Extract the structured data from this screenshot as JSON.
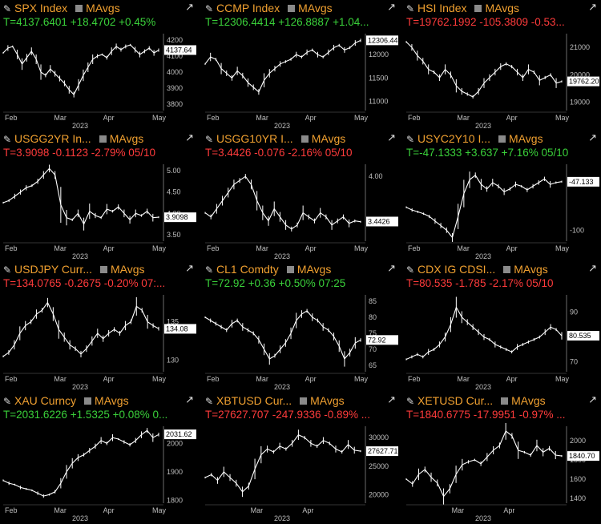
{
  "panels": [
    {
      "ticker": "SPX Index",
      "mavgs": "MAvgs",
      "quote": "T=4137.6401 +18.4702 +0.45%",
      "dir": "up",
      "last_label": "4137.64",
      "chart_data": {
        "type": "line",
        "yticks": [
          "4200",
          "4100",
          "4000",
          "3900",
          "3800"
        ],
        "yvals": [
          4200,
          4100,
          4000,
          3900,
          3800
        ],
        "ylim": [
          3760,
          4240
        ],
        "xticks": [
          "Feb",
          "Mar",
          "Apr",
          "May"
        ],
        "xyear": "2023",
        "last": 4137.64,
        "series": [
          4120,
          4150,
          4160,
          4110,
          4050,
          4090,
          4130,
          4080,
          4000,
          3980,
          4020,
          3990,
          3960,
          3930,
          3890,
          3860,
          3920,
          3980,
          4030,
          4080,
          4100,
          4110,
          4090,
          4130,
          4160,
          4140,
          4160,
          4170,
          4140,
          4110,
          4130,
          4150,
          4120,
          4137
        ]
      }
    },
    {
      "ticker": "CCMP Index",
      "mavgs": "MAvgs",
      "quote": "T=12306.4414 +126.8887 +1.04...",
      "dir": "up",
      "last_label": "12306.44",
      "chart_data": {
        "type": "line",
        "yticks": [
          "12000",
          "11500",
          "11000"
        ],
        "yvals": [
          12000,
          11500,
          11000
        ],
        "ylim": [
          10800,
          12450
        ],
        "xticks": [
          "Feb",
          "Mar",
          "Apr",
          "May"
        ],
        "xyear": "2023",
        "last": 12306.44,
        "series": [
          11800,
          11950,
          11900,
          11700,
          11600,
          11500,
          11650,
          11550,
          11400,
          11300,
          11200,
          11450,
          11600,
          11700,
          11800,
          11850,
          11900,
          12000,
          11950,
          12050,
          12100,
          12000,
          11950,
          12050,
          12150,
          12200,
          12100,
          12150,
          12250,
          12306
        ]
      }
    },
    {
      "ticker": "HSI Index",
      "mavgs": "MAvgs",
      "quote": "T=19762.1992 -105.3809 -0.53...",
      "dir": "dn",
      "last_label": "19762.20",
      "chart_data": {
        "type": "line",
        "yticks": [
          "21000",
          "20000",
          "19000"
        ],
        "yvals": [
          21000,
          20000,
          19000
        ],
        "ylim": [
          18700,
          21500
        ],
        "xticks": [
          "Feb",
          "Mar",
          "Apr",
          "May"
        ],
        "xyear": "2023",
        "last": 19762.2,
        "series": [
          21200,
          21000,
          20700,
          20500,
          20200,
          20100,
          19900,
          20200,
          20000,
          19600,
          19400,
          19300,
          19200,
          19400,
          19700,
          19900,
          20100,
          20300,
          20400,
          20300,
          20100,
          19900,
          20200,
          20100,
          19800,
          19900,
          20000,
          19700,
          19762
        ]
      }
    },
    {
      "ticker": "USGG2YR In...",
      "mavgs": "MAvgs",
      "quote": "T=3.9098 -0.1123 -2.79% 05/10",
      "dir": "dn",
      "last_label": "3.9098",
      "chart_data": {
        "type": "line",
        "yticks": [
          "5.00",
          "4.50",
          "4.00",
          "3.50"
        ],
        "yvals": [
          5.0,
          4.5,
          4.0,
          3.5
        ],
        "ylim": [
          3.35,
          5.15
        ],
        "xticks": [
          "Feb",
          "Mar",
          "Apr",
          "May"
        ],
        "xyear": "2023",
        "last": 3.9098,
        "series": [
          4.25,
          4.3,
          4.4,
          4.5,
          4.6,
          4.65,
          4.75,
          4.9,
          5.05,
          4.9,
          4.2,
          3.9,
          3.85,
          4.0,
          3.75,
          4.05,
          3.95,
          3.9,
          4.1,
          4.05,
          4.15,
          4.0,
          3.85,
          4.0,
          3.95,
          4.05,
          3.9,
          3.91
        ]
      }
    },
    {
      "ticker": "USGG10YR I...",
      "mavgs": "MAvgs",
      "quote": "T=3.4426 -0.076 -2.16% 05/10",
      "dir": "dn",
      "last_label": "3.4426",
      "chart_data": {
        "type": "line",
        "yticks": [
          "4.00"
        ],
        "yvals": [
          4.0
        ],
        "ylim": [
          3.2,
          4.15
        ],
        "xticks": [
          "Feb",
          "Mar",
          "Apr",
          "May"
        ],
        "xyear": "2023",
        "last": 3.4426,
        "series": [
          3.55,
          3.5,
          3.6,
          3.7,
          3.8,
          3.9,
          3.95,
          4.0,
          3.9,
          3.7,
          3.55,
          3.45,
          3.6,
          3.5,
          3.4,
          3.35,
          3.4,
          3.55,
          3.5,
          3.45,
          3.55,
          3.5,
          3.4,
          3.45,
          3.5,
          3.42,
          3.45,
          3.44
        ]
      }
    },
    {
      "ticker": "USYC2Y10 I...",
      "mavgs": "MAvgs",
      "quote": "T=-47.1333 +3.637 +7.16% 05/10",
      "dir": "up",
      "last_label": "-47.133",
      "chart_data": {
        "type": "line",
        "yticks": [
          "-100"
        ],
        "yvals": [
          -100
        ],
        "ylim": [
          -112,
          -28
        ],
        "xticks": [
          "Feb",
          "Mar",
          "Apr",
          "May"
        ],
        "xyear": "2023",
        "last": -47.133,
        "series": [
          -75,
          -78,
          -80,
          -82,
          -85,
          -90,
          -95,
          -100,
          -108,
          -85,
          -60,
          -45,
          -40,
          -50,
          -55,
          -48,
          -52,
          -58,
          -55,
          -50,
          -52,
          -56,
          -52,
          -48,
          -44,
          -50,
          -48,
          -47
        ]
      }
    },
    {
      "ticker": "USDJPY Curr...",
      "mavgs": "MAvgs",
      "quote": "T=134.0765 -0.2675 -0.20% 07:...",
      "dir": "dn",
      "last_label": "134.08",
      "chart_data": {
        "type": "line",
        "yticks": [
          "135",
          "130"
        ],
        "yvals": [
          135,
          130
        ],
        "ylim": [
          128.5,
          138.5
        ],
        "xticks": [
          "Feb",
          "Mar",
          "Apr",
          "May"
        ],
        "xyear": "2023",
        "last": 134.08,
        "series": [
          130.5,
          131,
          132,
          133.5,
          134.5,
          135,
          136,
          136.5,
          137.5,
          136,
          134,
          133,
          132,
          131.5,
          130.8,
          131.5,
          132.5,
          133.5,
          132.8,
          133.5,
          134,
          133.5,
          134.5,
          135,
          137,
          136.5,
          135,
          134.5,
          134.1
        ]
      }
    },
    {
      "ticker": "CL1 Comdty",
      "mavgs": "MAvgs",
      "quote": "T=72.92 +0.36 +0.50% 07:25",
      "dir": "up",
      "last_label": "72.92",
      "chart_data": {
        "type": "line",
        "yticks": [
          "85",
          "80",
          "75",
          "70",
          "65"
        ],
        "yvals": [
          85,
          80,
          75,
          70,
          65
        ],
        "ylim": [
          63,
          87
        ],
        "xticks": [
          "Feb",
          "Mar",
          "Apr",
          "May"
        ],
        "xyear": "2023",
        "last": 72.92,
        "series": [
          80,
          79,
          78,
          77,
          76,
          78,
          79,
          77,
          76,
          75,
          73,
          70,
          67,
          68,
          70,
          72,
          75,
          79,
          81,
          82,
          80,
          79,
          77,
          76,
          74,
          71,
          67,
          69,
          72,
          72.9
        ]
      }
    },
    {
      "ticker": "CDX IG CDSI...",
      "mavgs": "MAvgs",
      "quote": "T=80.535 -1.785 -2.17% 05/10",
      "dir": "dn",
      "last_label": "80.535",
      "chart_data": {
        "type": "line",
        "yticks": [
          "90",
          "80",
          "70"
        ],
        "yvals": [
          90,
          80,
          70
        ],
        "ylim": [
          66,
          97
        ],
        "xticks": [
          "Feb",
          "Mar",
          "Apr",
          "May"
        ],
        "xyear": "2023",
        "last": 80.535,
        "series": [
          71,
          72,
          73,
          72,
          74,
          75,
          77,
          80,
          85,
          92,
          88,
          86,
          84,
          82,
          80,
          79,
          77,
          76,
          75,
          74,
          76,
          77,
          78,
          79,
          80,
          82,
          84,
          83,
          80.5
        ]
      }
    },
    {
      "ticker": "XAU Curncy",
      "mavgs": "MAvgs",
      "quote": "T=2031.6226 +1.5325 +0.08% 0...",
      "dir": "up",
      "last_label": "2031.62",
      "chart_data": {
        "type": "line",
        "yticks": [
          "2000",
          "1900",
          "1800"
        ],
        "yvals": [
          2000,
          1900,
          1800
        ],
        "ylim": [
          1790,
          2060
        ],
        "xticks": [
          "Feb",
          "Mar",
          "Apr",
          "May"
        ],
        "xyear": "2023",
        "last": 2031.62,
        "series": [
          1870,
          1860,
          1855,
          1845,
          1840,
          1835,
          1825,
          1815,
          1820,
          1830,
          1860,
          1900,
          1930,
          1950,
          1960,
          1975,
          1990,
          2010,
          2000,
          2020,
          2015,
          2005,
          1995,
          2010,
          2030,
          2045,
          2020,
          2031
        ]
      }
    },
    {
      "ticker": "XBTUSD Cur...",
      "mavgs": "MAvgs",
      "quote": "T=27627.707 -247.9336 -0.89% ...",
      "dir": "dn",
      "last_label": "27627.71",
      "chart_data": {
        "type": "line",
        "yticks": [
          "30000",
          "25000",
          "20000"
        ],
        "yvals": [
          30000,
          25000,
          20000
        ],
        "ylim": [
          18500,
          32000
        ],
        "xticks": [
          "Mar",
          "Apr"
        ],
        "xyear": "2023",
        "last": 27627.71,
        "series": [
          23000,
          23500,
          22500,
          24000,
          23000,
          22000,
          20500,
          21500,
          24500,
          27000,
          28000,
          27500,
          28500,
          28000,
          29000,
          30500,
          30000,
          29000,
          28500,
          29500,
          29000,
          28000,
          27500,
          28800,
          27800,
          27627
        ]
      }
    },
    {
      "ticker": "XETUSD Cur...",
      "mavgs": "MAvgs",
      "quote": "T=1840.6775 -17.9951 -0.97% ...",
      "dir": "dn",
      "last_label": "1840.70",
      "chart_data": {
        "type": "line",
        "yticks": [
          "2000",
          "1800",
          "1600",
          "1400"
        ],
        "yvals": [
          2000,
          1800,
          1600,
          1400
        ],
        "ylim": [
          1350,
          2150
        ],
        "xticks": [
          "Mar",
          "Apr"
        ],
        "xyear": "2023",
        "last": 1840.7,
        "series": [
          1600,
          1550,
          1650,
          1700,
          1620,
          1560,
          1420,
          1500,
          1650,
          1750,
          1780,
          1800,
          1760,
          1830,
          1900,
          1950,
          2100,
          2050,
          1900,
          1880,
          1850,
          1950,
          1880,
          1920,
          1850,
          1840.7
        ]
      }
    }
  ]
}
